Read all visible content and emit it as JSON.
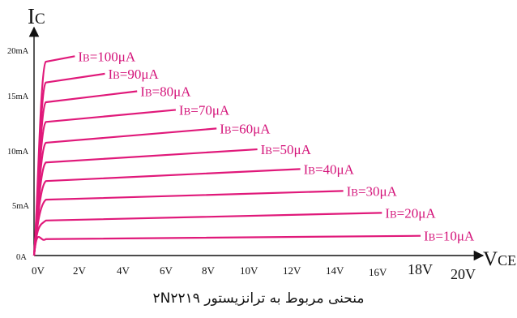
{
  "chart_data": {
    "type": "line",
    "y_axis_title": {
      "main": "I",
      "sub": "C"
    },
    "x_axis_title": {
      "main": "V",
      "sub": "CE"
    },
    "x_ticks": [
      "0V",
      "2V",
      "4V",
      "6V",
      "8V",
      "10V",
      "12V",
      "14V",
      "16V",
      "18V",
      "20V"
    ],
    "y_ticks": [
      "0A",
      "5mA",
      "10mA",
      "15mA",
      "20mA"
    ],
    "xlim": [
      0,
      20
    ],
    "ylim": [
      0,
      20
    ],
    "series": [
      {
        "name": "IB=10μA",
        "label_main": "I",
        "label_sub": "B",
        "label_rest": "=10μA",
        "x_end": 18.0,
        "y_start": 1.5,
        "y_end": 1.8
      },
      {
        "name": "IB=20μA",
        "label_main": "I",
        "label_sub": "B",
        "label_rest": "=20μA",
        "x_end": 16.2,
        "y_start": 3.2,
        "y_end": 3.9
      },
      {
        "name": "IB=30μA",
        "label_main": "I",
        "label_sub": "B",
        "label_rest": "=30μA",
        "x_end": 14.4,
        "y_start": 5.1,
        "y_end": 5.9
      },
      {
        "name": "IB=40μA",
        "label_main": "I",
        "label_sub": "B",
        "label_rest": "=40μA",
        "x_end": 12.4,
        "y_start": 6.8,
        "y_end": 7.9
      },
      {
        "name": "IB=50μA",
        "label_main": "I",
        "label_sub": "B",
        "label_rest": "=50μA",
        "x_end": 10.4,
        "y_start": 8.5,
        "y_end": 9.7
      },
      {
        "name": "IB=60μA",
        "label_main": "I",
        "label_sub": "B",
        "label_rest": "=60μA",
        "x_end": 8.5,
        "y_start": 10.3,
        "y_end": 11.6
      },
      {
        "name": "IB=70μA",
        "label_main": "I",
        "label_sub": "B",
        "label_rest": "=70μA",
        "x_end": 6.6,
        "y_start": 12.2,
        "y_end": 13.3
      },
      {
        "name": "IB=80μA",
        "label_main": "I",
        "label_sub": "B",
        "label_rest": "=80μA",
        "x_end": 4.8,
        "y_start": 14.0,
        "y_end": 15.0
      },
      {
        "name": "IB=90μA",
        "label_main": "I",
        "label_sub": "B",
        "label_rest": "=90μA",
        "x_end": 3.3,
        "y_start": 15.8,
        "y_end": 16.6
      },
      {
        "name": "IB=100μA",
        "label_main": "I",
        "label_sub": "B",
        "label_rest": "=100μA",
        "x_end": 1.9,
        "y_start": 17.7,
        "y_end": 18.2
      }
    ],
    "colors": {
      "curve": "#e0197a",
      "label": "#d4147a",
      "axis": "#111111"
    },
    "grid": false
  },
  "caption": "منحنی مربوط به ترانزیستور ۲N۲۲۱۹"
}
